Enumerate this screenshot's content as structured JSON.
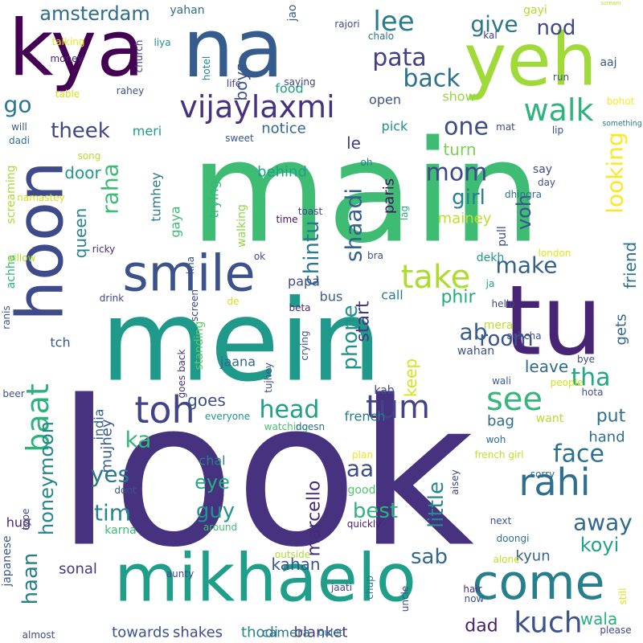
{
  "words": [
    {
      "text": "look",
      "color": "#46327e"
    },
    {
      "text": "main",
      "color": "#3fbc73"
    },
    {
      "text": "mein",
      "color": "#1f9a8a"
    },
    {
      "text": "tu",
      "color": "#482475"
    },
    {
      "text": "kya",
      "color": "#440154"
    },
    {
      "text": "na",
      "color": "#365c8d"
    },
    {
      "text": "yeh",
      "color": "#a0da39"
    },
    {
      "text": "hoon",
      "color": "#3e4a89"
    },
    {
      "text": "mikhaelo",
      "color": "#1f9e89"
    },
    {
      "text": "come",
      "color": "#277f8e"
    },
    {
      "text": "smile",
      "color": "#3b528b"
    },
    {
      "text": "vijaylaxmi",
      "color": "#46327e"
    },
    {
      "text": "looking",
      "color": "#fde725"
    },
    {
      "text": "friend",
      "color": "#2c728e"
    },
    {
      "text": "rahi",
      "color": "#2e6e8e"
    },
    {
      "text": "kuch",
      "color": "#3b528b"
    },
    {
      "text": "walk",
      "color": "#2eb37c"
    },
    {
      "text": "toh",
      "color": "#414487"
    },
    {
      "text": "baat",
      "color": "#2db27d"
    },
    {
      "text": "head",
      "color": "#1fa187"
    },
    {
      "text": "tum",
      "color": "#414487"
    },
    {
      "text": "see",
      "color": "#35b779"
    },
    {
      "text": "take",
      "color": "#addc30"
    },
    {
      "text": "face",
      "color": "#2c728e"
    },
    {
      "text": "tha",
      "color": "#22a884"
    },
    {
      "text": "away",
      "color": "#31688e"
    },
    {
      "text": "phone",
      "color": "#21918c"
    },
    {
      "text": "chintu",
      "color": "#2a788e"
    },
    {
      "text": "shaadi",
      "color": "#34618d"
    },
    {
      "text": "raha",
      "color": "#3dbc74"
    },
    {
      "text": "theek",
      "color": "#404688"
    },
    {
      "text": "make",
      "color": "#355f8d"
    },
    {
      "text": "room",
      "color": "#3a548c"
    },
    {
      "text": "back",
      "color": "#2c718e"
    },
    {
      "text": "pata",
      "color": "#424086"
    },
    {
      "text": "give",
      "color": "#2a768e"
    },
    {
      "text": "lee",
      "color": "#287c8e"
    },
    {
      "text": "one",
      "color": "#3d4d8a"
    },
    {
      "text": "mom",
      "color": "#3f4889"
    },
    {
      "text": "girl",
      "color": "#26818e"
    },
    {
      "text": "little",
      "color": "#23898e"
    },
    {
      "text": "sab",
      "color": "#31688e"
    },
    {
      "text": "haan",
      "color": "#287d8e"
    },
    {
      "text": "amsterdam",
      "color": "#2e6d8e"
    },
    {
      "text": "go",
      "color": "#2a788e"
    },
    {
      "text": "nod",
      "color": "#3e4989"
    },
    {
      "text": "ab",
      "color": "#355e8d"
    },
    {
      "text": "tim",
      "color": "#25848e"
    },
    {
      "text": "yes",
      "color": "#2a788e"
    },
    {
      "text": "ka",
      "color": "#35b779"
    },
    {
      "text": "aa",
      "color": "#3e4c8a"
    },
    {
      "text": "best",
      "color": "#2eb37c"
    },
    {
      "text": "guy",
      "color": "#1f958b"
    },
    {
      "text": "eye",
      "color": "#26ad81"
    },
    {
      "text": "koyi",
      "color": "#20a386"
    },
    {
      "text": "dad",
      "color": "#481f70"
    },
    {
      "text": "put",
      "color": "#2c728e"
    },
    {
      "text": "hand",
      "color": "#2e6f8e"
    },
    {
      "text": "keep",
      "color": "#d8e219"
    },
    {
      "text": "goes",
      "color": "#3b528b"
    },
    {
      "text": "start",
      "color": "#453882"
    },
    {
      "text": "phir",
      "color": "#23a983"
    },
    {
      "text": "voh",
      "color": "#3a548c"
    },
    {
      "text": "queen",
      "color": "#26828e"
    },
    {
      "text": "honeymoon",
      "color": "#24878e"
    },
    {
      "text": "marcello",
      "color": "#472a7a"
    },
    {
      "text": "kahan",
      "color": "#3a548c"
    },
    {
      "text": "boys",
      "color": "#3b528b"
    },
    {
      "text": "turn",
      "color": "#7ad151"
    },
    {
      "text": "door",
      "color": "#1f978b"
    },
    {
      "text": "le",
      "color": "#424086"
    },
    {
      "text": "paris",
      "color": "#471063"
    },
    {
      "text": "gets",
      "color": "#32658e"
    },
    {
      "text": "leave",
      "color": "#2f6b8e"
    },
    {
      "text": "wala",
      "color": "#2ab07f"
    },
    {
      "text": "bag",
      "color": "#2e6e8e"
    },
    {
      "text": "mainey",
      "color": "#bddf26"
    },
    {
      "text": "mujhey",
      "color": "#365c8d"
    },
    {
      "text": "sonal",
      "color": "#443a83"
    },
    {
      "text": "kyun",
      "color": "#33638d"
    },
    {
      "text": "towards",
      "color": "#3a548c"
    },
    {
      "text": "shakes",
      "color": "#3e4c8a"
    },
    {
      "text": "thodi",
      "color": "#25858e"
    },
    {
      "text": "blanket",
      "color": "#46337f"
    },
    {
      "text": "camera",
      "color": "#2e6e8e"
    },
    {
      "text": "behind",
      "color": "#1fa188"
    },
    {
      "text": "notice",
      "color": "#31688e"
    },
    {
      "text": "meri",
      "color": "#1e9b8a"
    },
    {
      "text": "pick",
      "color": "#21908d"
    },
    {
      "text": "show",
      "color": "#93d741"
    },
    {
      "text": "open",
      "color": "#3b528b"
    },
    {
      "text": "food",
      "color": "#1f9e89"
    },
    {
      "text": "tumhey",
      "color": "#2a788e"
    },
    {
      "text": "trying",
      "color": "#35b779"
    },
    {
      "text": "gaya",
      "color": "#3dbc74"
    },
    {
      "text": "screaming",
      "color": "#a8db34"
    },
    {
      "text": "achha",
      "color": "#2eb37c"
    },
    {
      "text": "tch",
      "color": "#38588c"
    },
    {
      "text": "papa",
      "color": "#3e4a89"
    },
    {
      "text": "say",
      "color": "#3e4989"
    },
    {
      "text": "pull",
      "color": "#3f4889"
    },
    {
      "text": "dekh",
      "color": "#1f978b"
    },
    {
      "text": "call",
      "color": "#277f8e"
    },
    {
      "text": "bus",
      "color": "#375a8c"
    },
    {
      "text": "jaana",
      "color": "#31688e"
    },
    {
      "text": "french",
      "color": "#2a788e"
    },
    {
      "text": "kab",
      "color": "#3d4e8a"
    },
    {
      "text": "want",
      "color": "#b5de2b"
    },
    {
      "text": "wahan",
      "color": "#3b528b"
    },
    {
      "text": "mera",
      "color": "#bade28"
    },
    {
      "text": "india",
      "color": "#33628d"
    },
    {
      "text": "chal",
      "color": "#277e8e"
    },
    {
      "text": "good",
      "color": "#50c46a"
    },
    {
      "text": "hug",
      "color": "#482878"
    },
    {
      "text": "karna",
      "color": "#3aba76"
    },
    {
      "text": "japanese",
      "color": "#375b8d"
    },
    {
      "text": "walking",
      "color": "#90d743"
    },
    {
      "text": "standing",
      "color": "#5ec962"
    },
    {
      "text": "gayi",
      "color": "#b2dd2d"
    },
    {
      "text": "jao",
      "color": "#365d8d"
    },
    {
      "text": "yahan",
      "color": "#2e6e8e"
    },
    {
      "text": "rajori",
      "color": "#3d4e8a"
    },
    {
      "text": "scream",
      "color": "#b5de2b"
    },
    {
      "text": "aaj",
      "color": "#365c8d"
    },
    {
      "text": "kal",
      "color": "#404588"
    },
    {
      "text": "chalo",
      "color": "#2c728e"
    },
    {
      "text": "talking",
      "color": "#f1e51d"
    },
    {
      "text": "liya",
      "color": "#21918c"
    },
    {
      "text": "church",
      "color": "#3f4889"
    },
    {
      "text": "money",
      "color": "#482475"
    },
    {
      "text": "table",
      "color": "#d5e21a"
    },
    {
      "text": "rahey",
      "color": "#3b528b"
    },
    {
      "text": "hotel",
      "color": "#25848e"
    },
    {
      "text": "life",
      "color": "#3f4788"
    },
    {
      "text": "saying",
      "color": "#404588"
    },
    {
      "text": "run",
      "color": "#38588c"
    },
    {
      "text": "bohot",
      "color": "#fde725"
    },
    {
      "text": "mat",
      "color": "#3e4a89"
    },
    {
      "text": "lip",
      "color": "#3b528b"
    },
    {
      "text": "something",
      "color": "#2a788e"
    },
    {
      "text": "will",
      "color": "#375b8d"
    },
    {
      "text": "dadi",
      "color": "#2e6e8e"
    },
    {
      "text": "sweet",
      "color": "#3a548c"
    },
    {
      "text": "song",
      "color": "#b8de29"
    },
    {
      "text": "oh",
      "color": "#26828e"
    },
    {
      "text": "day",
      "color": "#3b528b"
    },
    {
      "text": "dhingra",
      "color": "#2c728e"
    },
    {
      "text": "lag",
      "color": "#29af7f"
    },
    {
      "text": "namastey",
      "color": "#d2e21b"
    },
    {
      "text": "toast",
      "color": "#3e4a89"
    },
    {
      "text": "time",
      "color": "#471063"
    },
    {
      "text": "ricky",
      "color": "#472d7b"
    },
    {
      "text": "pillow",
      "color": "#b0dd2f"
    },
    {
      "text": "ok",
      "color": "#3e4989"
    },
    {
      "text": "bra",
      "color": "#3b528b"
    },
    {
      "text": "london",
      "color": "#e2e418"
    },
    {
      "text": "kha",
      "color": "#3b528b"
    },
    {
      "text": "beta",
      "color": "#482878"
    },
    {
      "text": "ja",
      "color": "#1f9e89"
    },
    {
      "text": "drink",
      "color": "#404588"
    },
    {
      "text": "screen",
      "color": "#404588"
    },
    {
      "text": "de",
      "color": "#d2e21b"
    },
    {
      "text": "hello",
      "color": "#3e4989"
    },
    {
      "text": "achcha",
      "color": "#3d4e8a"
    },
    {
      "text": "ranis",
      "color": "#39568c"
    },
    {
      "text": "crying",
      "color": "#3b528b"
    },
    {
      "text": "goes back",
      "color": "#46327e"
    },
    {
      "text": "tujhey",
      "color": "#3b528b"
    },
    {
      "text": "bye",
      "color": "#3e4a89"
    },
    {
      "text": "wali",
      "color": "#365c8d"
    },
    {
      "text": "people",
      "color": "#d0e11c"
    },
    {
      "text": "beer",
      "color": "#3b528b"
    },
    {
      "text": "hota",
      "color": "#3b528b"
    },
    {
      "text": "everyone",
      "color": "#1f968b"
    },
    {
      "text": "watching",
      "color": "#4ac16d"
    },
    {
      "text": "doesn",
      "color": "#2e6e8e"
    },
    {
      "text": "woh",
      "color": "#2e6e8e"
    },
    {
      "text": "plan",
      "color": "#f1e51d"
    },
    {
      "text": "aisey",
      "color": "#414487"
    },
    {
      "text": "french girl",
      "color": "#c2df23"
    },
    {
      "text": "sorry",
      "color": "#30698e"
    },
    {
      "text": "dont",
      "color": "#3b528b"
    },
    {
      "text": "type",
      "color": "#3e4989"
    },
    {
      "text": "around",
      "color": "#40bd72"
    },
    {
      "text": "quickly",
      "color": "#481f70"
    },
    {
      "text": "next",
      "color": "#3a548c"
    },
    {
      "text": "doongi",
      "color": "#2c728e"
    },
    {
      "text": "alone",
      "color": "#c5e021"
    },
    {
      "text": "outside",
      "color": "#addc30"
    },
    {
      "text": "aunty",
      "color": "#3e4a89"
    },
    {
      "text": "jaati",
      "color": "#414487"
    },
    {
      "text": "chup",
      "color": "#2a788e"
    },
    {
      "text": "uncle",
      "color": "#3b528b"
    },
    {
      "text": "hair",
      "color": "#472c7a"
    },
    {
      "text": "now",
      "color": "#3b528b"
    },
    {
      "text": "still",
      "color": "#e2e418"
    },
    {
      "text": "almost",
      "color": "#3e4a89"
    },
    {
      "text": "quiet",
      "color": "#25848e"
    },
    {
      "text": "please",
      "color": "#3e4989"
    }
  ]
}
